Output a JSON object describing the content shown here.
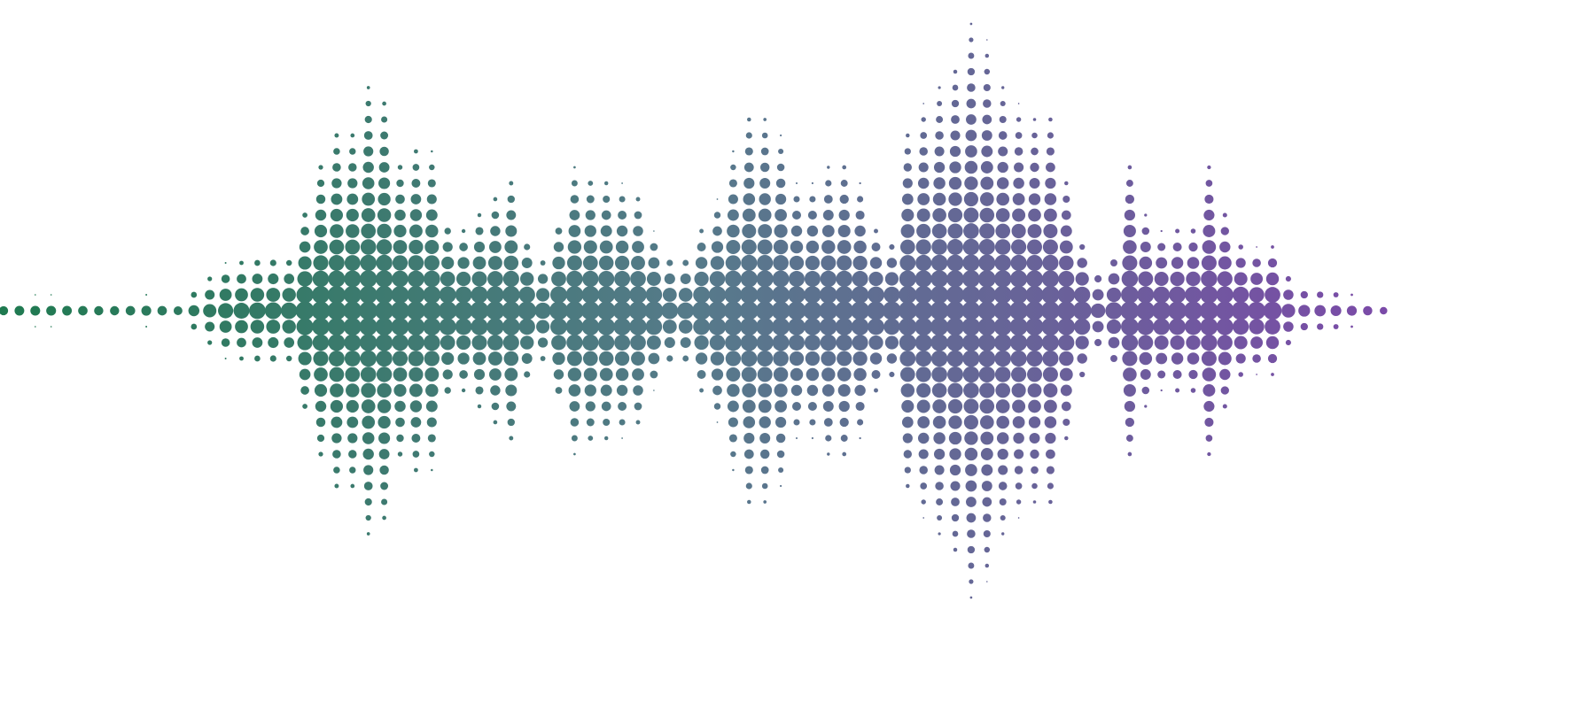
{
  "artwork": {
    "subject": "halftone-sound-wave",
    "colors": {
      "start": "#1f7a50",
      "middle": "#567a8a",
      "end": "#7b4aa8",
      "background": "#ffffff"
    }
  }
}
